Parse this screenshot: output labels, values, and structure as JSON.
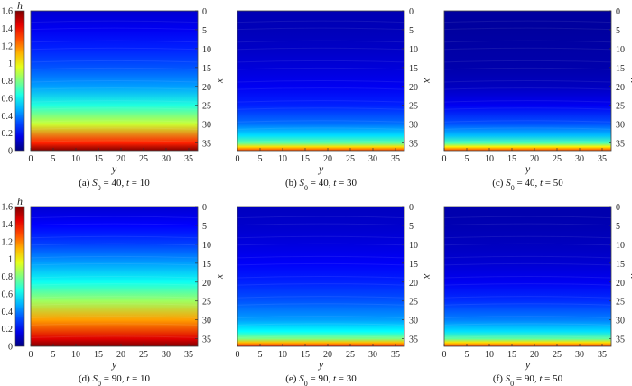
{
  "chart_data": {
    "type": "heatmap",
    "colorbar": {
      "label": "h",
      "range": [
        0,
        1.6
      ],
      "ticks": [
        "0",
        "0.2",
        "0.4",
        "0.6",
        "0.8",
        "1",
        "1.2",
        "1.4",
        "1.6"
      ],
      "colormap": "jet"
    },
    "xlabel": "y",
    "ylabel": "x",
    "x_ticks": [
      "0",
      "5",
      "10",
      "15",
      "20",
      "25",
      "30",
      "35"
    ],
    "y_ticks": [
      "0",
      "5",
      "10",
      "15",
      "20",
      "25",
      "30",
      "35"
    ],
    "xlim": [
      0,
      37
    ],
    "ylim": [
      0,
      37
    ],
    "panels": [
      {
        "caption": {
          "prefix": "(a) ",
          "S": "S",
          "sub": "0",
          "eq": " = 40,  ",
          "t": "t",
          "teq": " = 10"
        },
        "s0": 40,
        "t": 10,
        "profile_x": [
          0,
          5,
          10,
          15,
          20,
          25,
          30,
          35,
          37
        ],
        "profile_h": [
          0.13,
          0.18,
          0.25,
          0.33,
          0.45,
          0.65,
          0.92,
          1.35,
          1.6
        ]
      },
      {
        "caption": {
          "prefix": "(b) ",
          "S": "S",
          "sub": "0",
          "eq": " = 40,  ",
          "t": "t",
          "teq": " = 30"
        },
        "s0": 40,
        "t": 30,
        "profile_x": [
          0,
          5,
          10,
          15,
          20,
          25,
          30,
          33,
          35,
          36,
          37
        ],
        "profile_h": [
          0.08,
          0.09,
          0.11,
          0.14,
          0.18,
          0.25,
          0.38,
          0.55,
          0.75,
          1.05,
          1.3
        ]
      },
      {
        "caption": {
          "prefix": "(c) ",
          "S": "S",
          "sub": "0",
          "eq": " = 40,  ",
          "t": "t",
          "teq": " = 50"
        },
        "s0": 40,
        "t": 50,
        "profile_x": [
          0,
          5,
          10,
          15,
          20,
          25,
          30,
          33,
          35,
          36,
          37
        ],
        "profile_h": [
          0.05,
          0.05,
          0.06,
          0.07,
          0.1,
          0.18,
          0.33,
          0.5,
          0.72,
          1.02,
          1.3
        ]
      },
      {
        "caption": {
          "prefix": "(d) ",
          "S": "S",
          "sub": "0",
          "eq": " = 90,  ",
          "t": "t",
          "teq": " = 10"
        },
        "s0": 90,
        "t": 10,
        "profile_x": [
          0,
          5,
          10,
          15,
          20,
          25,
          30,
          35,
          37
        ],
        "profile_h": [
          0.13,
          0.2,
          0.3,
          0.45,
          0.62,
          0.85,
          1.15,
          1.45,
          1.6
        ]
      },
      {
        "caption": {
          "prefix": "(e) ",
          "S": "S",
          "sub": "0",
          "eq": " = 90,  ",
          "t": "t",
          "teq": " = 30"
        },
        "s0": 90,
        "t": 30,
        "profile_x": [
          0,
          5,
          10,
          15,
          20,
          25,
          30,
          33,
          35,
          36,
          37
        ],
        "profile_h": [
          0.1,
          0.12,
          0.15,
          0.19,
          0.25,
          0.33,
          0.45,
          0.6,
          0.8,
          1.1,
          1.35
        ]
      },
      {
        "caption": {
          "prefix": "(f) ",
          "S": "S",
          "sub": "0",
          "eq": " = 90,  ",
          "t": "t",
          "teq": " = 50"
        },
        "s0": 90,
        "t": 50,
        "profile_x": [
          0,
          5,
          10,
          15,
          20,
          25,
          30,
          33,
          35,
          36,
          37
        ],
        "profile_h": [
          0.07,
          0.08,
          0.1,
          0.13,
          0.18,
          0.27,
          0.4,
          0.55,
          0.75,
          1.05,
          1.3
        ]
      }
    ]
  }
}
